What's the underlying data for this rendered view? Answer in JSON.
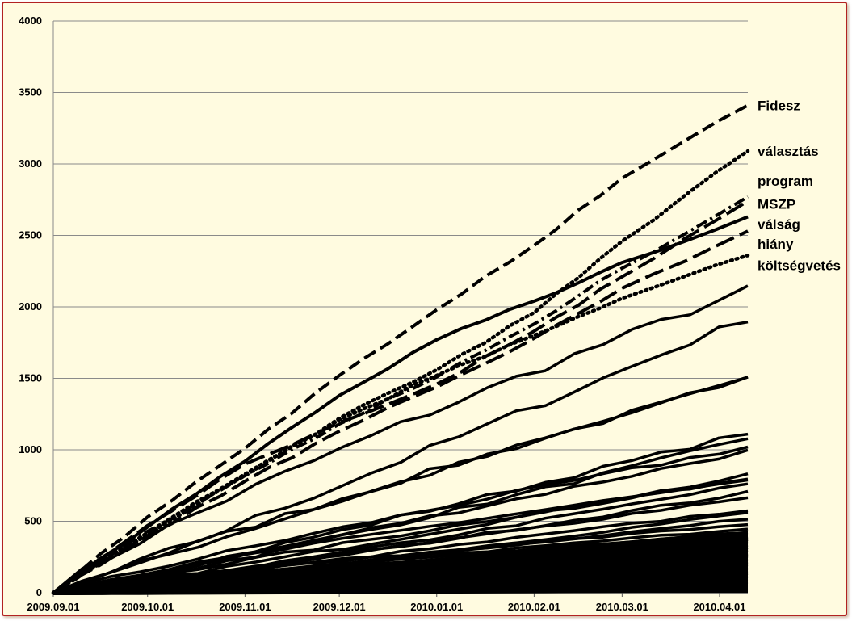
{
  "chart_data": {
    "type": "line",
    "title": "",
    "xlabel": "",
    "ylabel": "",
    "ylim": [
      0,
      4000
    ],
    "xlim": [
      "2009-09-01",
      "2010-04-10"
    ],
    "y_ticks": [
      "0",
      "500",
      "1000",
      "1500",
      "2000",
      "2500",
      "3000",
      "3500",
      "4000"
    ],
    "x_ticks": [
      {
        "label": "2009.09.01",
        "date": "2009-09-01"
      },
      {
        "label": "2009.10.01",
        "date": "2009-10-01"
      },
      {
        "label": "2009.11.01",
        "date": "2009-11-01"
      },
      {
        "label": "2009.12.01",
        "date": "2009-12-01"
      },
      {
        "label": "2010.01.01",
        "date": "2010-01-01"
      },
      {
        "label": "2010.02.01",
        "date": "2010-02-01"
      },
      {
        "label": "2010.03.01",
        "date": "2010-03-01"
      },
      {
        "label": "2010.04.01",
        "date": "2010-04-01"
      }
    ],
    "grid": "horizontal",
    "labeled_series": [
      {
        "name": "Fidesz",
        "style": "dashed",
        "points": [
          [
            "2009-09-01",
            0
          ],
          [
            "2009-10-01",
            530
          ],
          [
            "2009-11-01",
            1010
          ],
          [
            "2009-12-01",
            1520
          ],
          [
            "2010-01-01",
            1980
          ],
          [
            "2010-02-01",
            2430
          ],
          [
            "2010-03-01",
            2900
          ],
          [
            "2010-04-10",
            3410
          ]
        ]
      },
      {
        "name": "választás",
        "style": "dotted",
        "points": [
          [
            "2009-09-01",
            0
          ],
          [
            "2009-10-01",
            410
          ],
          [
            "2009-11-01",
            820
          ],
          [
            "2009-12-01",
            1220
          ],
          [
            "2010-01-01",
            1560
          ],
          [
            "2010-02-01",
            1960
          ],
          [
            "2010-03-01",
            2460
          ],
          [
            "2010-04-10",
            3090
          ]
        ]
      },
      {
        "name": "program",
        "style": "dash-dot",
        "points": [
          [
            "2009-09-01",
            0
          ],
          [
            "2009-10-01",
            430
          ],
          [
            "2009-11-01",
            820
          ],
          [
            "2009-12-01",
            1180
          ],
          [
            "2010-01-01",
            1510
          ],
          [
            "2010-02-01",
            1880
          ],
          [
            "2010-03-01",
            2270
          ],
          [
            "2010-04-10",
            2770
          ]
        ]
      },
      {
        "name": "MSZP",
        "style": "long-dash",
        "points": [
          [
            "2009-09-01",
            0
          ],
          [
            "2009-10-01",
            470
          ],
          [
            "2009-11-01",
            900
          ],
          [
            "2009-12-01",
            1190
          ],
          [
            "2010-01-01",
            1460
          ],
          [
            "2010-02-01",
            1830
          ],
          [
            "2010-03-01",
            2210
          ],
          [
            "2010-04-10",
            2740
          ]
        ]
      },
      {
        "name": "válság",
        "style": "solid",
        "points": [
          [
            "2009-09-01",
            0
          ],
          [
            "2009-10-01",
            460
          ],
          [
            "2009-11-01",
            920
          ],
          [
            "2009-12-01",
            1380
          ],
          [
            "2010-01-01",
            1770
          ],
          [
            "2010-02-01",
            2040
          ],
          [
            "2010-03-01",
            2310
          ],
          [
            "2010-04-10",
            2630
          ]
        ]
      },
      {
        "name": "hiány",
        "style": "long-dash",
        "points": [
          [
            "2009-09-01",
            0
          ],
          [
            "2009-10-01",
            400
          ],
          [
            "2009-11-01",
            780
          ],
          [
            "2009-12-01",
            1130
          ],
          [
            "2010-01-01",
            1440
          ],
          [
            "2010-02-01",
            1780
          ],
          [
            "2010-03-01",
            2130
          ],
          [
            "2010-04-10",
            2530
          ]
        ]
      },
      {
        "name": "költségvetés",
        "style": "dotted",
        "points": [
          [
            "2009-09-01",
            0
          ],
          [
            "2009-10-01",
            420
          ],
          [
            "2009-11-01",
            830
          ],
          [
            "2009-12-01",
            1210
          ],
          [
            "2010-01-01",
            1520
          ],
          [
            "2010-02-01",
            1800
          ],
          [
            "2010-03-01",
            2060
          ],
          [
            "2010-04-10",
            2360
          ]
        ]
      }
    ],
    "unlabeled_series_final_values": [
      2120,
      1920,
      1500,
      1490,
      1120,
      1080,
      1020,
      990,
      820,
      800,
      780,
      760,
      700,
      670,
      580,
      560,
      520,
      480,
      450,
      420,
      400,
      380,
      360,
      340,
      320,
      300,
      280,
      260,
      240,
      220,
      200,
      180,
      160,
      140,
      120,
      100,
      80,
      60,
      40,
      20
    ]
  }
}
